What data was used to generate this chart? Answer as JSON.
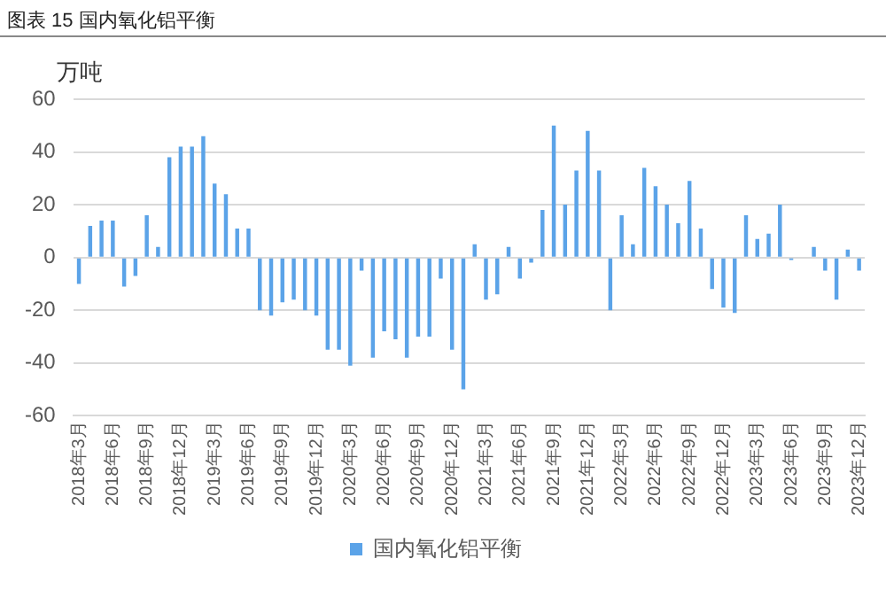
{
  "chart_data": {
    "type": "bar",
    "title": "图表 15 国内氧化铝平衡",
    "ylabel": "万吨",
    "categories": [
      "2018年3月",
      null,
      null,
      "2018年6月",
      null,
      null,
      "2018年9月",
      null,
      null,
      "2018年12月",
      null,
      null,
      "2019年3月",
      null,
      null,
      "2019年6月",
      null,
      null,
      "2019年9月",
      null,
      null,
      "2019年12月",
      null,
      null,
      "2020年3月",
      null,
      null,
      "2020年6月",
      null,
      null,
      "2020年9月",
      null,
      null,
      "2020年12月",
      null,
      null,
      "2021年3月",
      null,
      null,
      "2021年6月",
      null,
      null,
      "2021年9月",
      null,
      null,
      "2021年12月",
      null,
      null,
      "2022年3月",
      null,
      null,
      "2022年6月",
      null,
      null,
      "2022年9月",
      null,
      null,
      "2022年12月",
      null,
      null,
      "2023年3月",
      null,
      null,
      "2023年6月",
      null,
      null,
      "2023年9月",
      null,
      null,
      "2023年12月"
    ],
    "series": [
      {
        "name": "国内氧化铝平衡",
        "color": "#5ba3e8",
        "values": [
          -10,
          12,
          14,
          14,
          -11,
          -7,
          16,
          4,
          38,
          42,
          42,
          46,
          28,
          24,
          11,
          11,
          -20,
          -22,
          -17,
          -16,
          -20,
          -22,
          -35,
          -35,
          -41,
          -5,
          -38,
          -28,
          -31,
          -38,
          -30,
          -30,
          -8,
          -35,
          -50,
          5,
          -16,
          -14,
          4,
          -8,
          -2,
          18,
          50,
          20,
          33,
          48,
          33,
          -20,
          16,
          5,
          34,
          27,
          20,
          13,
          29,
          11,
          -12,
          -19,
          -21,
          16,
          7,
          9,
          20,
          -1,
          0,
          4,
          -5,
          -16,
          3,
          -5
        ]
      }
    ],
    "ylim": [
      -60,
      60
    ],
    "yticks": [
      -60,
      -40,
      -20,
      0,
      20,
      40,
      60
    ],
    "grid": "y",
    "legend": "bottom"
  }
}
